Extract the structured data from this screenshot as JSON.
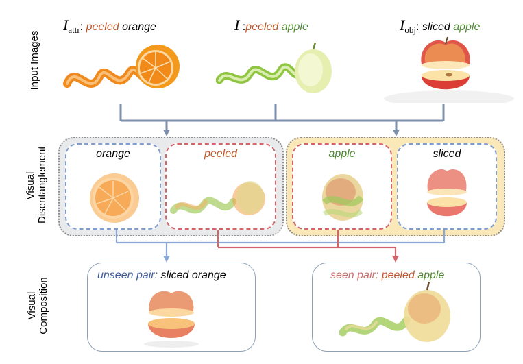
{
  "row_labels": {
    "input": "Input Images",
    "disentangle": [
      "Visual",
      "Disentanglement"
    ],
    "composition": [
      "Visual",
      "Composition"
    ]
  },
  "inputs": {
    "attr": {
      "symbol": "I",
      "subscript": "attr",
      "sep": ":",
      "attribute": "peeled",
      "object": "orange"
    },
    "main": {
      "symbol": "I",
      "sep": ":",
      "attribute": "peeled",
      "object": "apple"
    },
    "obj": {
      "symbol": "I",
      "subscript": "obj",
      "sep": ":",
      "attribute": "sliced",
      "object": "apple"
    }
  },
  "disentangle": {
    "left": {
      "obj_label": "orange",
      "attr_label": "peeled"
    },
    "right": {
      "obj_label": "apple",
      "attr_label": "sliced"
    }
  },
  "composition": {
    "unseen": {
      "prefix": "unseen pair:",
      "attribute": "sliced",
      "object": "orange"
    },
    "seen": {
      "prefix": "seen pair:",
      "attribute": "peeled",
      "object": "apple"
    }
  },
  "colors": {
    "blue": "#7f9ccc",
    "red": "#d0666a",
    "arrow_gray": "#7e8fab",
    "panel_gray": "#e9eaec",
    "panel_yellow": "#fbe8b8",
    "attr_text": "#c0562a",
    "obj_text": "#4f8a33"
  }
}
